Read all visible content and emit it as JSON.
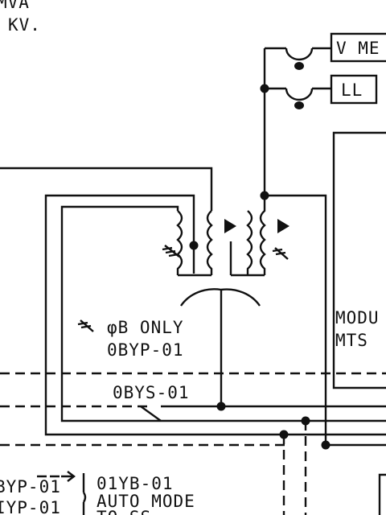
{
  "labels": {
    "top_line1": "MVA",
    "top_line2": "KV.",
    "meter_box": "V ME",
    "ll_box": "LL",
    "module_line1": "MODU",
    "module_line2": "MTS",
    "phase_only": "φB ONLY",
    "ybp_upper": "0BYP-01",
    "ysys": "0BYS-01",
    "bottom_left1": "BYP-01",
    "bottom_left2": "IYP-01",
    "bottom_right1": "01YB-01",
    "auto_mode": "AUTO MODE",
    "to_ss": "TO SS"
  }
}
